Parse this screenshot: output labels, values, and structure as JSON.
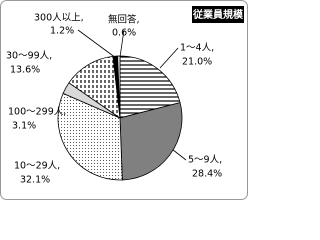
{
  "chart_data": {
    "type": "pie",
    "title": "従業員規模",
    "categories": [
      "1～4人,",
      "5～9人,",
      "10～29人,",
      "100～299人,",
      "30～99人,",
      "300人以上,",
      "無回答,"
    ],
    "values": [
      21.0,
      28.4,
      32.1,
      3.1,
      13.6,
      1.2,
      0.6
    ],
    "value_labels": [
      "21.0%",
      "28.4%",
      "32.1%",
      "3.1%",
      "13.6%",
      "1.2%",
      "0.6%"
    ],
    "colors": [
      "url(#p-h)",
      "#808080",
      "url(#p-dot)",
      "#d9d9d9",
      "url(#p-v)",
      "#000000",
      "#ffffff"
    ]
  }
}
